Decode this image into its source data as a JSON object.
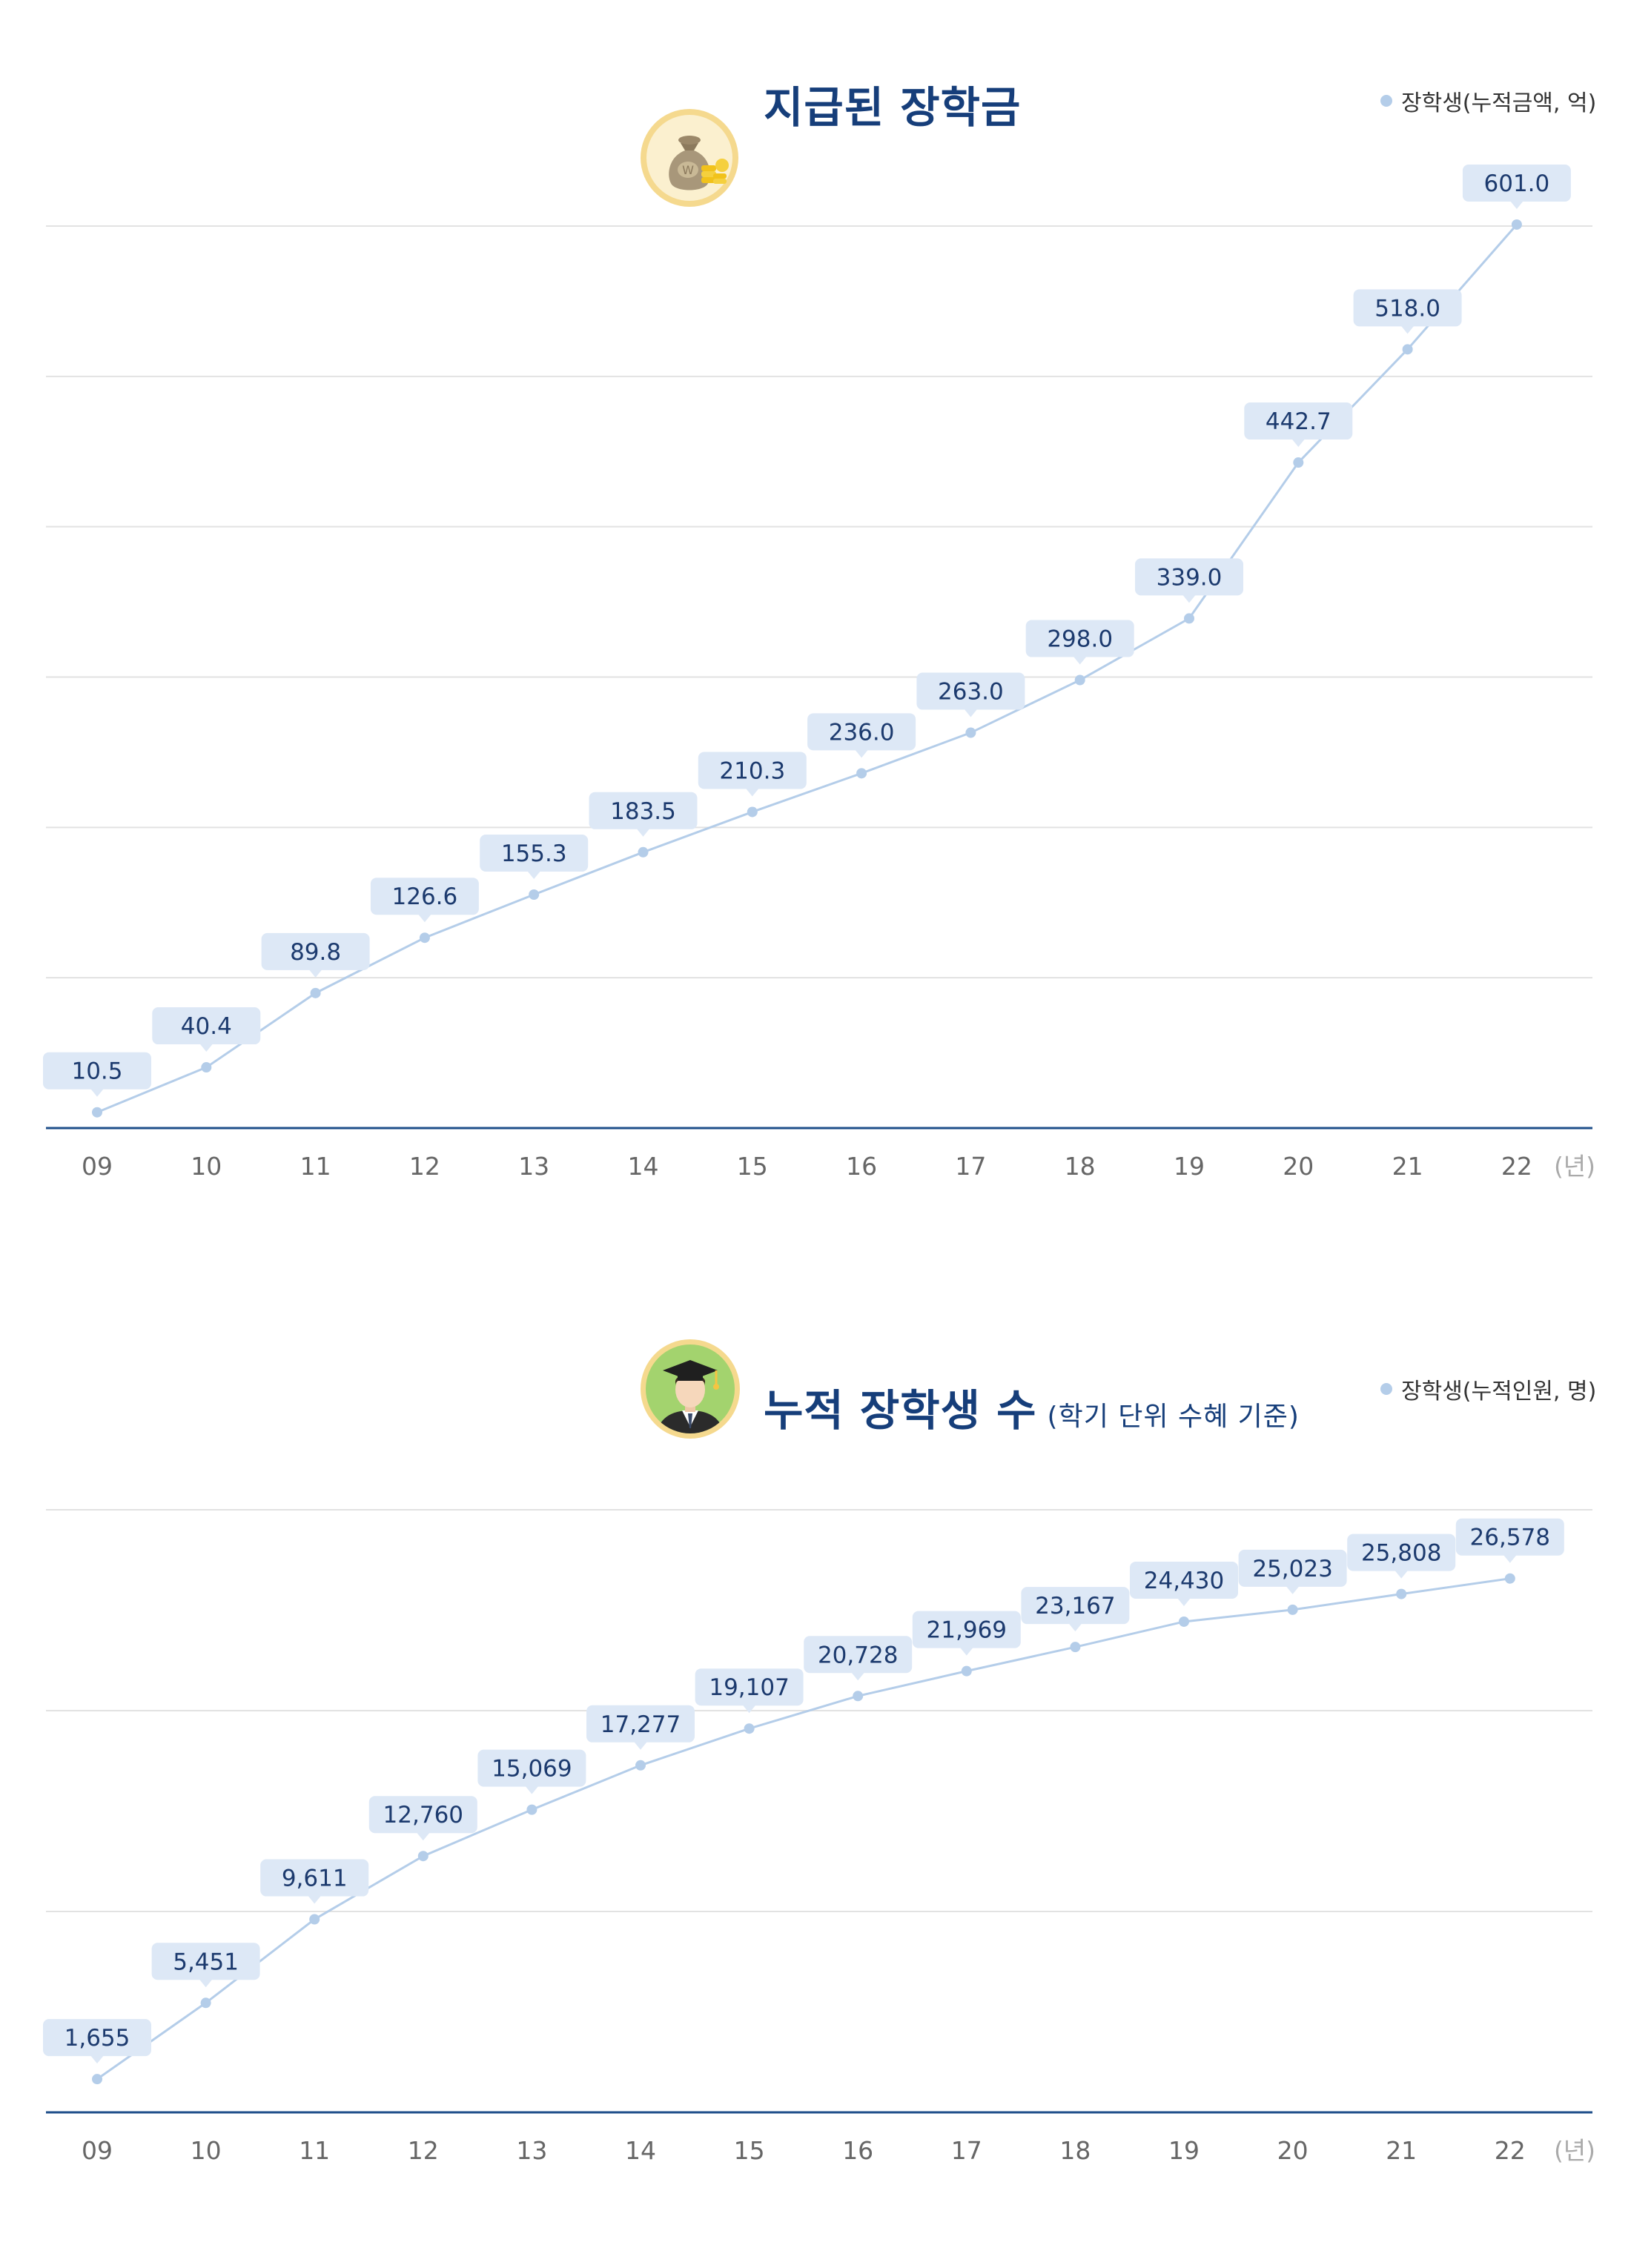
{
  "colors": {
    "title": "#163e7a",
    "line": "#b4cde9",
    "point": "#b4cde9",
    "label_bg": "#dde8f6",
    "label_text": "#1c3a6e",
    "grid": "#e2e2e2",
    "axis": "#1f4f8a",
    "tick_text": "#666666",
    "unit_text": "#aaaaaa"
  },
  "chart_data": [
    {
      "type": "line",
      "title": "지급된 장학금",
      "subtitle": "",
      "icon": "money-bag-icon",
      "legend": {
        "label": "장학생(누적금액, 억)",
        "position": "top-right"
      },
      "x_unit": "(년)",
      "categories": [
        "09",
        "10",
        "11",
        "12",
        "13",
        "14",
        "15",
        "16",
        "17",
        "18",
        "19",
        "20",
        "21",
        "22"
      ],
      "series": [
        {
          "name": "장학생(누적금액, 억)",
          "values": [
            10.5,
            40.4,
            89.8,
            126.6,
            155.3,
            183.5,
            210.3,
            236.0,
            263.0,
            298.0,
            339.0,
            442.7,
            518.0,
            601.0
          ],
          "labels": [
            "10.5",
            "40.4",
            "89.8",
            "126.6",
            "155.3",
            "183.5",
            "210.3",
            "236.0",
            "263.0",
            "298.0",
            "339.0",
            "442.7",
            "518.0",
            "601.0"
          ]
        }
      ],
      "ylim": [
        0,
        600
      ],
      "grid": true,
      "y_tick_labels": false
    },
    {
      "type": "line",
      "title": "누적 장학생 수",
      "subtitle": "(학기 단위 수혜 기준)",
      "icon": "graduate-icon",
      "legend": {
        "label": "장학생(누적인원, 명)",
        "position": "top-right"
      },
      "x_unit": "(년)",
      "categories": [
        "09",
        "10",
        "11",
        "12",
        "13",
        "14",
        "15",
        "16",
        "17",
        "18",
        "19",
        "20",
        "21",
        "22"
      ],
      "series": [
        {
          "name": "장학생(누적인원, 명)",
          "values": [
            1655,
            5451,
            9611,
            12760,
            15069,
            17277,
            19107,
            20728,
            21969,
            23167,
            24430,
            25023,
            25808,
            26578
          ],
          "labels": [
            "1,655",
            "5,451",
            "9,611",
            "12,760",
            "15,069",
            "17,277",
            "19,107",
            "20,728",
            "21,969",
            "23,167",
            "24,430",
            "25,023",
            "25,808",
            "26,578"
          ]
        }
      ],
      "ylim": [
        0,
        30000
      ],
      "grid": true,
      "y_tick_labels": false
    }
  ]
}
